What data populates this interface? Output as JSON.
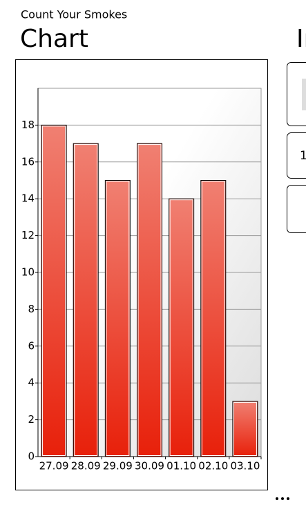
{
  "app_title": "Count Your Smokes",
  "pivot": {
    "current": "Chart",
    "next": "In"
  },
  "panel_value": "1",
  "chart_data": {
    "type": "bar",
    "categories": [
      "27.09",
      "28.09",
      "29.09",
      "30.09",
      "01.10",
      "02.10",
      "03.10"
    ],
    "values": [
      18,
      17,
      15,
      17,
      14,
      15,
      3
    ],
    "color": "#e8230f",
    "ylim": [
      0,
      20
    ],
    "yticks": [
      0,
      2,
      4,
      6,
      8,
      10,
      12,
      14,
      16,
      18
    ],
    "grid": true
  }
}
